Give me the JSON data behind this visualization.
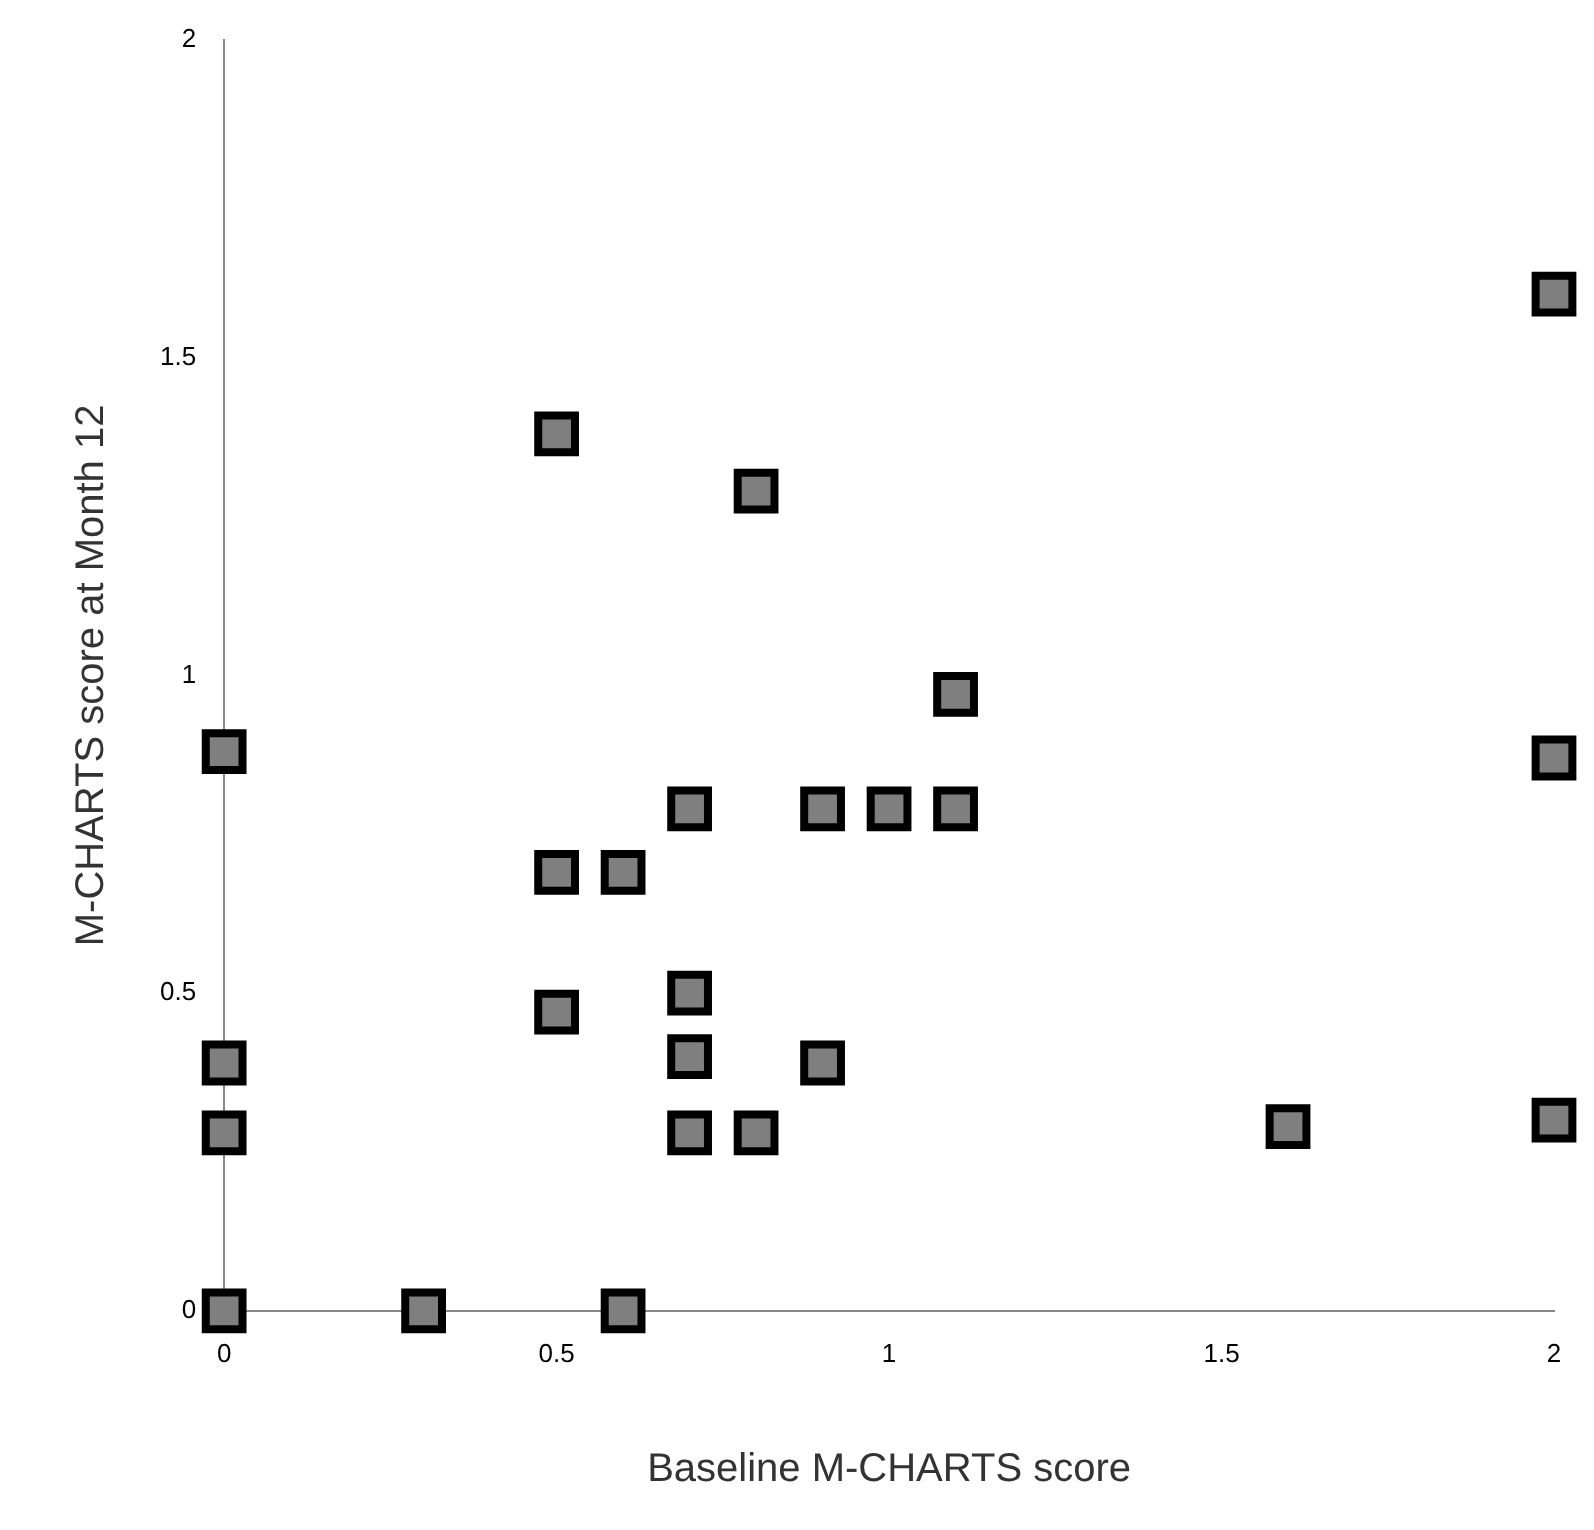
{
  "chart_data": {
    "type": "scatter",
    "xlabel": "Baseline M-CHARTS score",
    "ylabel": "M-CHARTS score at Month 12",
    "x": [
      0,
      0,
      0,
      0,
      0.3,
      0.6,
      0.5,
      0.5,
      0.5,
      0.6,
      0.7,
      0.7,
      0.7,
      0.7,
      0.8,
      0.8,
      0.9,
      0.9,
      1.0,
      1.1,
      1.1,
      1.6,
      2.0,
      2.0,
      2.0
    ],
    "values": [
      0.88,
      0.39,
      0.28,
      0,
      0,
      0,
      1.38,
      0.47,
      0.69,
      0.69,
      0.79,
      0.5,
      0.4,
      0.28,
      1.29,
      0.28,
      0.39,
      0.79,
      0.79,
      0.79,
      0.97,
      0.29,
      1.6,
      0.87,
      0.3
    ],
    "color": "#7f7f7f",
    "marker": "square",
    "xlim": [
      0,
      2
    ],
    "xticks": [
      0,
      0.5,
      1,
      1.5,
      2
    ],
    "ylim": [
      0,
      2
    ],
    "yticks": [
      0,
      0.5,
      1,
      1.5,
      2
    ],
    "grid": false,
    "legend": false
  }
}
